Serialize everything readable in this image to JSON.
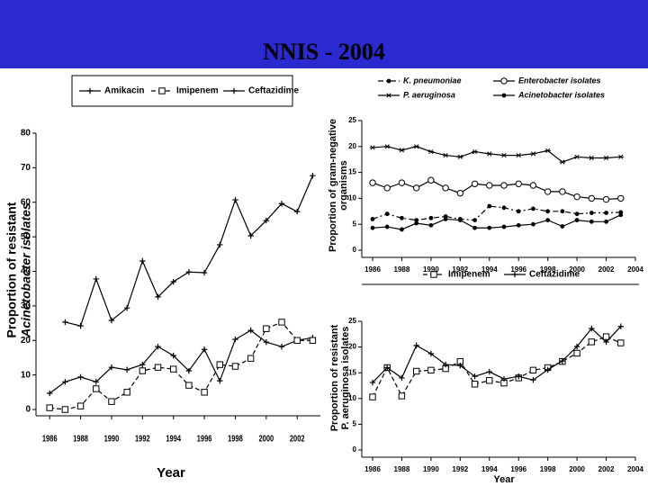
{
  "title": "NNIS - 2004",
  "chart_data": [
    {
      "type": "line",
      "x": [
        1986,
        1987,
        1988,
        1989,
        1990,
        1991,
        1992,
        1993,
        1994,
        1995,
        1996,
        1997,
        1998,
        1999,
        2000,
        2001,
        2002,
        2003
      ],
      "xlim": [
        1985,
        2003.5
      ],
      "xticks": [
        1986,
        1988,
        1990,
        1992,
        1994,
        1996,
        1998,
        2000,
        2002
      ],
      "ylim": [
        0,
        80
      ],
      "yticks": [
        0,
        10,
        20,
        30,
        40,
        50,
        60,
        70,
        80
      ],
      "y_label": [
        "Proportion of resistant",
        "Acinetobacter isolates"
      ],
      "x_label": "Year",
      "series": [
        {
          "name": "Amikacin",
          "color": "#000000",
          "dash": "solid",
          "marker": "plus",
          "values": [
            4.7,
            8,
            9.4,
            8,
            12.2,
            11.5,
            13,
            18.2,
            15.6,
            11.2,
            17.4,
            8.3,
            20.3,
            22.9,
            19.5,
            18.2,
            20,
            20.8
          ]
        },
        {
          "name": "Imipenem",
          "color": "#000000",
          "dash": "dashed",
          "marker": "square",
          "values": [
            0.5,
            0,
            1,
            6,
            2.3,
            5,
            11.2,
            12.2,
            11.7,
            7,
            5,
            13,
            12.5,
            14.8,
            23.4,
            25.3,
            20,
            20
          ]
        },
        {
          "name": "Ceftazidime",
          "color": "#000000",
          "dash": "solid",
          "marker": "plus",
          "values": [
            null,
            25.3,
            24.2,
            37.8,
            25.8,
            29.4,
            43,
            32.6,
            37,
            39.8,
            39.6,
            47.7,
            60.7,
            50.3,
            54.7,
            59.6,
            57.3,
            67.7
          ]
        }
      ]
    },
    {
      "type": "line",
      "x": [
        1986,
        1987,
        1988,
        1989,
        1990,
        1991,
        1992,
        1993,
        1994,
        1995,
        1996,
        1997,
        1998,
        1999,
        2000,
        2001,
        2002,
        2003
      ],
      "xlim": [
        1986,
        2004
      ],
      "xticks": [
        1986,
        1988,
        1990,
        1992,
        1994,
        1996,
        1998,
        2000,
        2002,
        2004
      ],
      "ylim": [
        0,
        25
      ],
      "yticks": [
        0,
        5,
        10,
        15,
        20,
        25
      ],
      "y_label": [
        "Proportion of gram-negative",
        "organisms"
      ],
      "series": [
        {
          "name": "K. pneumoniae",
          "color": "#000000",
          "dash": "dashdot",
          "marker": "dot",
          "values": [
            6,
            7,
            6.2,
            5.8,
            6.2,
            6.5,
            6,
            5.8,
            8.5,
            8.2,
            7.5,
            8,
            7.5,
            7.5,
            7,
            7.2,
            7.2,
            7.3
          ]
        },
        {
          "name": "Enterobacter isolates",
          "color": "#000000",
          "dash": "solid",
          "marker": "circle",
          "values": [
            13,
            12,
            13,
            12,
            13.5,
            12,
            11,
            12.8,
            12.5,
            12.5,
            12.8,
            12.5,
            11.3,
            11.3,
            10.3,
            10,
            9.8,
            10
          ]
        },
        {
          "name": "P. aeruginosa",
          "color": "#000000",
          "dash": "solid",
          "marker": "asterisk",
          "values": [
            19.8,
            20,
            19.3,
            20,
            19,
            18.3,
            18,
            19,
            18.6,
            18.3,
            18.3,
            18.6,
            19.2,
            17,
            18,
            17.8,
            17.8,
            18
          ]
        },
        {
          "name": "Acinetobacter isolates",
          "color": "#000000",
          "dash": "solid",
          "marker": "dot",
          "values": [
            4.3,
            4.5,
            4,
            5.2,
            4.8,
            6,
            5.8,
            4.3,
            4.3,
            4.5,
            4.8,
            5,
            5.8,
            4.6,
            5.8,
            5.5,
            5.5,
            6.8
          ]
        }
      ]
    },
    {
      "type": "line",
      "x": [
        1986,
        1987,
        1988,
        1989,
        1990,
        1991,
        1992,
        1993,
        1994,
        1995,
        1996,
        1997,
        1998,
        1999,
        2000,
        2001,
        2002,
        2003
      ],
      "xlim": [
        1986,
        2004
      ],
      "xticks": [
        1986,
        1988,
        1990,
        1992,
        1994,
        1996,
        1998,
        2000,
        2002,
        2004
      ],
      "ylim": [
        0,
        25
      ],
      "yticks": [
        0,
        5,
        10,
        15,
        20,
        25
      ],
      "y_label": [
        "Proportion of resistant",
        "P. aeruginosa isolates"
      ],
      "x_label": "Year",
      "series": [
        {
          "name": "Imipenem",
          "color": "#000000",
          "dash": "dashed",
          "marker": "square",
          "values": [
            10.3,
            16,
            10.5,
            15.3,
            15.5,
            15.8,
            17.2,
            12.8,
            13.5,
            13,
            14,
            15.5,
            16,
            17.2,
            18.8,
            21,
            22,
            20.8
          ]
        },
        {
          "name": "Ceftazidime",
          "color": "#000000",
          "dash": "solid",
          "marker": "plus",
          "values": [
            13.1,
            16,
            14,
            20.3,
            18.7,
            16.6,
            16.4,
            14.3,
            15.2,
            13.8,
            14.3,
            13.6,
            15.6,
            17.3,
            20.1,
            23.6,
            21,
            24
          ]
        }
      ]
    }
  ]
}
